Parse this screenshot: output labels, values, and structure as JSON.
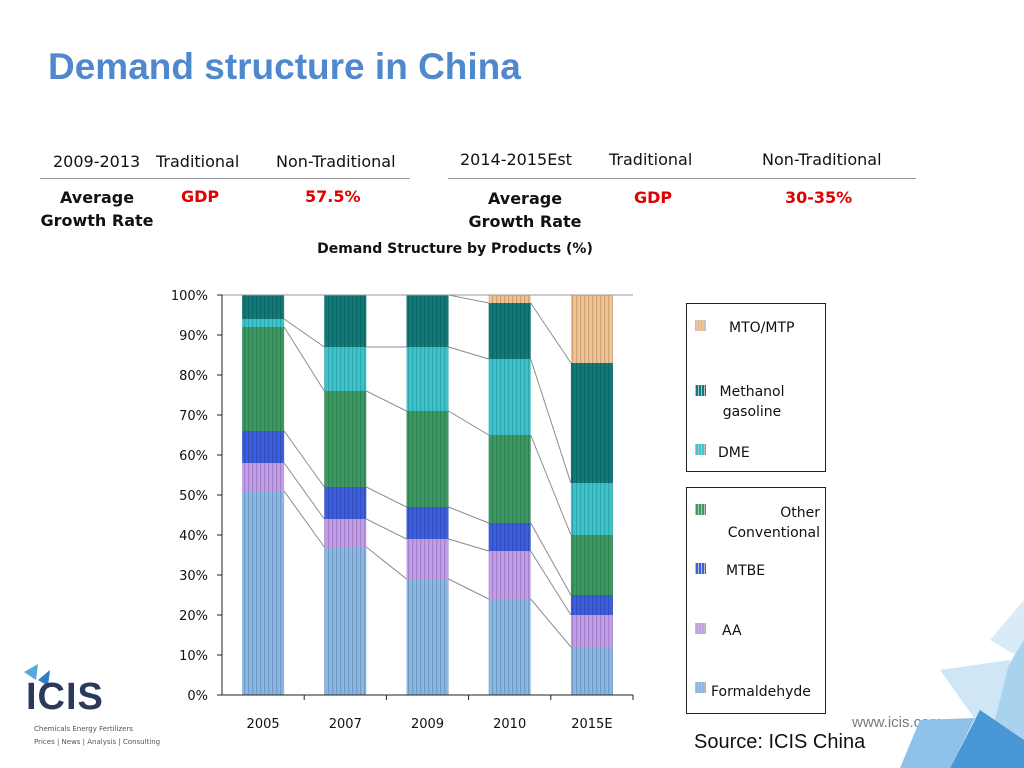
{
  "slide": {
    "title": "Demand structure in China",
    "source": "Source: ICIS China",
    "website": "www.icis.com"
  },
  "logo": {
    "name": "ICIS",
    "tagline_1": "Chemicals  Energy  Fertilizers",
    "tagline_2": "Prices | News | Analysis | Consulting"
  },
  "table_left": {
    "period": "2009-2013",
    "col1": "Traditional",
    "col2": "Non-Traditional",
    "row_label": "Average Growth Rate",
    "val1": "GDP",
    "val2": "57.5%"
  },
  "table_right": {
    "period": "2014-2015Est",
    "col1": "Traditional",
    "col2": "Non-Traditional",
    "row_label": "Average Growth Rate",
    "val1": "GDP",
    "val2": "30-35%"
  },
  "colors": {
    "title": "#4f88cc",
    "highlight_red": "#e00000"
  },
  "chart_data": {
    "type": "bar",
    "stacked": true,
    "percent": true,
    "title": "Demand Structure by  Products (%)",
    "categories": [
      "2005",
      "2007",
      "2009",
      "2010",
      "2015E"
    ],
    "ylim": [
      0,
      100
    ],
    "yticks": [
      "0%",
      "10%",
      "20%",
      "30%",
      "40%",
      "50%",
      "60%",
      "70%",
      "80%",
      "90%",
      "100%"
    ],
    "series": [
      {
        "name": "Formaldehyde",
        "color": "#8ab8e6",
        "values": [
          51,
          37,
          29,
          24,
          12
        ]
      },
      {
        "name": "AA",
        "color": "#c49cec",
        "values": [
          7,
          7,
          10,
          12,
          8
        ]
      },
      {
        "name": "MTBE",
        "color": "#3c5ee0",
        "values": [
          8,
          8,
          8,
          7,
          5
        ]
      },
      {
        "name": "Other\nConventional",
        "color": "#3a9a62",
        "values": [
          26,
          24,
          24,
          22,
          15
        ]
      },
      {
        "name": "DME",
        "color": "#3cc4cc",
        "values": [
          2,
          11,
          16,
          19,
          13
        ]
      },
      {
        "name": "Methanol\ngasoline",
        "color": "#0f7a78",
        "values": [
          6,
          13,
          13,
          14,
          30
        ]
      },
      {
        "name": "MTO/MTP",
        "color": "#f2c290",
        "values": [
          0,
          0,
          0,
          2,
          17
        ]
      }
    ],
    "legend": "right, two boxes"
  }
}
